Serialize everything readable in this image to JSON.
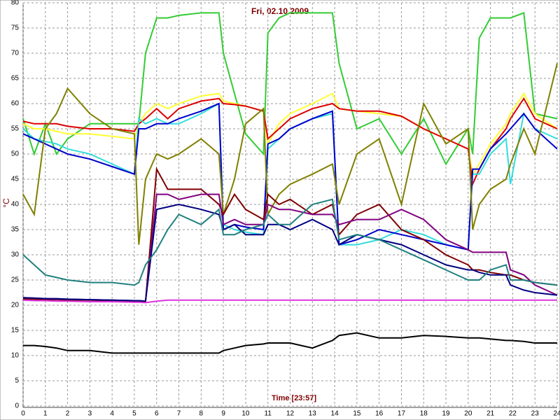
{
  "chart_data": {
    "type": "line",
    "title": "Fri, 02.10.2009",
    "x_label": "Time [23:57]",
    "y_label": "°C",
    "x": [
      0,
      0.5,
      1,
      1.5,
      2,
      3,
      4,
      5,
      5.2,
      5.5,
      6,
      6.5,
      7,
      8,
      8.8,
      9,
      9.5,
      10,
      10.8,
      11,
      11.5,
      12,
      13,
      13.9,
      14.2,
      15,
      16,
      17,
      18,
      19,
      20,
      20.2,
      20.5,
      21,
      21.7,
      21.9,
      22.5,
      23,
      24
    ],
    "xlim": [
      0,
      24
    ],
    "xticks": [
      0,
      1,
      2,
      3,
      4,
      5,
      6,
      7,
      8,
      9,
      10,
      11,
      12,
      13,
      14,
      15,
      16,
      17,
      18,
      19,
      20,
      21,
      22,
      23,
      24
    ],
    "ylim": [
      0,
      80
    ],
    "yticks": [
      0,
      5,
      10,
      15,
      20,
      25,
      30,
      35,
      40,
      45,
      50,
      55,
      60,
      65,
      70,
      75,
      80
    ],
    "grid": true,
    "series": [
      {
        "color": "#33cc33",
        "values": [
          57,
          50,
          56,
          50,
          53,
          56,
          56,
          56,
          56,
          70,
          77,
          77,
          77.5,
          78,
          78,
          70,
          62,
          54,
          50,
          74,
          77,
          78,
          78,
          78,
          68,
          55,
          57,
          50,
          57,
          48,
          55,
          50,
          73,
          77,
          77,
          77,
          78,
          58,
          57
        ]
      },
      {
        "color": "#ffff33",
        "values": [
          56,
          55,
          55,
          54.5,
          54,
          54,
          53.5,
          53,
          56,
          58,
          60,
          59,
          60,
          61.5,
          62,
          60.5,
          60,
          59.5,
          58.5,
          52,
          56,
          58,
          60,
          62,
          59,
          58.5,
          58,
          57.5,
          55,
          53,
          51,
          46,
          48,
          52,
          56,
          58,
          62,
          58,
          55
        ]
      },
      {
        "color": "#dd0000",
        "values": [
          56.5,
          56,
          56,
          56,
          55.5,
          55,
          55,
          54.5,
          56,
          57,
          59,
          57,
          59,
          60.5,
          61,
          60,
          59.8,
          59.5,
          58.5,
          53,
          55,
          57,
          59,
          60,
          59,
          58.5,
          58.5,
          57.5,
          55,
          53,
          51,
          44,
          47,
          51,
          55,
          57,
          61,
          57,
          55
        ]
      },
      {
        "color": "#33dddd",
        "values": [
          55,
          53,
          52.5,
          52,
          51,
          50,
          48,
          46,
          57,
          56,
          57,
          56,
          56,
          58,
          60,
          36,
          35,
          34.5,
          34,
          51,
          53,
          55,
          57,
          58,
          32,
          32,
          33,
          35,
          34,
          32,
          31,
          46,
          46,
          50,
          53,
          44,
          58,
          55,
          53
        ]
      },
      {
        "color": "#0000cc",
        "values": [
          54,
          53,
          52,
          51,
          50,
          49,
          47.5,
          46,
          55,
          55,
          56,
          56,
          57,
          58.5,
          60,
          35,
          36,
          35.5,
          35,
          52,
          53,
          55,
          57,
          58.5,
          32,
          33,
          35,
          34,
          33,
          32,
          31,
          47,
          47,
          51,
          54,
          55,
          58,
          55,
          51
        ]
      },
      {
        "color": "#808000",
        "values": [
          42,
          38,
          55,
          58,
          63,
          58,
          55,
          54,
          32,
          45,
          50,
          49,
          50,
          53,
          50,
          38,
          45,
          56,
          59,
          38,
          42,
          44,
          46,
          48,
          40,
          50,
          53,
          40,
          60,
          52,
          55,
          35,
          40,
          43,
          45,
          48,
          55,
          50,
          68
        ]
      },
      {
        "color": "#800000",
        "values": [
          21.2,
          21.2,
          21.1,
          21.1,
          21,
          21,
          20.9,
          20.8,
          20.8,
          20.7,
          47,
          43,
          43,
          43,
          40,
          38,
          42,
          39,
          37,
          42,
          40,
          41,
          38,
          40,
          34,
          38,
          40,
          35,
          33,
          30,
          28,
          27,
          27,
          26.5,
          26,
          26,
          25,
          24.5,
          24
        ]
      },
      {
        "color": "#800080",
        "values": [
          21.5,
          21.4,
          21.3,
          21.2,
          21.2,
          21.1,
          21,
          20.9,
          20.9,
          20.8,
          42,
          42,
          41,
          42,
          42,
          36,
          37,
          36,
          36,
          40,
          39,
          39,
          38,
          38,
          36,
          37,
          37,
          39,
          37,
          33,
          31,
          30.5,
          30.5,
          30.5,
          30.5,
          27,
          26,
          24,
          22
        ]
      },
      {
        "color": "#000080",
        "values": [
          21.5,
          21.4,
          21.3,
          21.3,
          21.2,
          21.1,
          21,
          20.9,
          20.9,
          20.8,
          39,
          39.5,
          40,
          39,
          38,
          35,
          36,
          34,
          34,
          36,
          36,
          35,
          37,
          35,
          32,
          34,
          33,
          32,
          30,
          28,
          27,
          27,
          26.5,
          26,
          26,
          24,
          23,
          22.5,
          22
        ]
      },
      {
        "color": "#208080",
        "values": [
          30,
          28,
          26,
          25.5,
          25,
          24.5,
          24.5,
          24,
          24.5,
          28,
          31,
          35,
          38,
          36,
          39,
          34,
          34,
          35,
          36,
          38,
          36,
          36,
          40,
          41,
          33,
          34,
          33,
          31,
          29,
          27,
          25,
          25,
          25,
          27,
          28,
          25,
          25,
          24.5,
          24
        ]
      },
      {
        "color": "#dd33dd",
        "values": [
          21,
          20.9,
          20.9,
          20.8,
          20.8,
          20.7,
          20.7,
          20.6,
          20.6,
          20.5,
          20.8,
          21,
          21,
          21,
          21,
          21,
          21,
          21,
          21,
          21,
          21,
          21,
          21,
          21,
          21,
          21,
          21,
          21,
          21,
          21,
          21,
          21,
          21,
          21,
          21,
          21,
          21,
          21,
          21
        ]
      },
      {
        "color": "#000000",
        "values": [
          12,
          12,
          11.8,
          11.5,
          11,
          11,
          10.5,
          10.5,
          10.5,
          10.5,
          10.5,
          10.5,
          10.5,
          10.5,
          10.5,
          11,
          11.5,
          12,
          12.3,
          12.5,
          12.5,
          12.5,
          11.5,
          13,
          14,
          14.5,
          13.5,
          13.5,
          14,
          13.8,
          13.5,
          13.5,
          13.5,
          13.3,
          13,
          13,
          12.8,
          12.5,
          12.5
        ]
      }
    ]
  }
}
